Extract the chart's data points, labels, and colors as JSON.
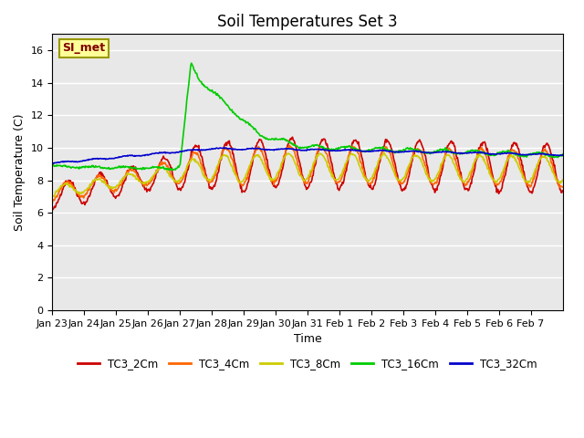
{
  "title": "Soil Temperatures Set 3",
  "xlabel": "Time",
  "ylabel": "Soil Temperature (C)",
  "ylim": [
    0,
    17
  ],
  "yticks": [
    0,
    2,
    4,
    6,
    8,
    10,
    12,
    14,
    16
  ],
  "x_labels": [
    "Jan 23",
    "Jan 24",
    "Jan 25",
    "Jan 26",
    "Jan 27",
    "Jan 28",
    "Jan 29",
    "Jan 30",
    "Jan 31",
    "Feb 1",
    "Feb 2",
    "Feb 3",
    "Feb 4",
    "Feb 5",
    "Feb 6",
    "Feb 7"
  ],
  "colors": {
    "TC3_2Cm": "#cc0000",
    "TC3_4Cm": "#ff6600",
    "TC3_8Cm": "#cccc00",
    "TC3_16Cm": "#00cc00",
    "TC3_32Cm": "#0000cc"
  },
  "legend_label": "SI_met",
  "background_color": "#e8e8e8",
  "grid_color": "#ffffff",
  "linewidth": 1.2
}
